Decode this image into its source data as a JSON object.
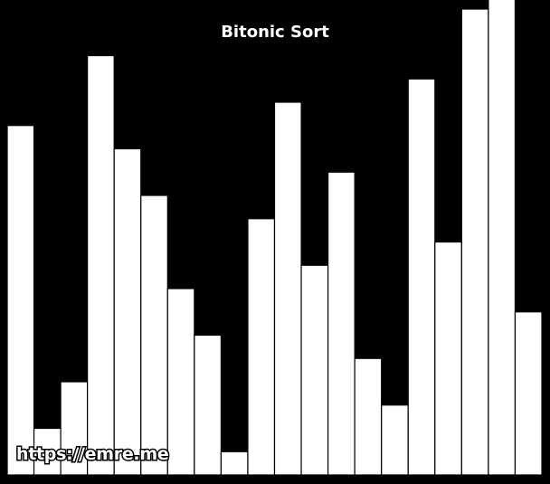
{
  "chart_data": {
    "type": "bar",
    "title": "Bitonic Sort",
    "values": [
      15,
      2,
      4,
      18,
      14,
      12,
      8,
      6,
      1,
      11,
      16,
      9,
      13,
      5,
      3,
      17,
      10,
      20,
      21,
      7
    ],
    "ylim": [
      0,
      20
    ],
    "grid": false,
    "colors": {
      "background": "#000000",
      "bar_fill": "#ffffff",
      "bar_stroke": "#000000"
    }
  },
  "watermark": "https://emre.me"
}
